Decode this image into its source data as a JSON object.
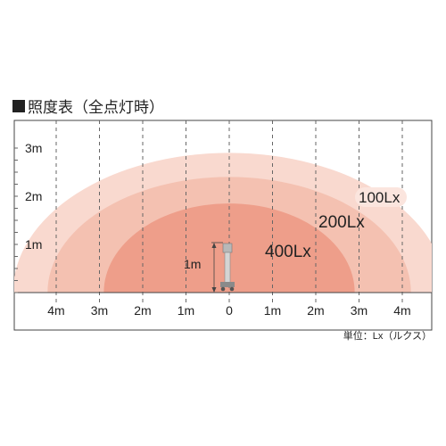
{
  "title": "照度表（全点灯時）",
  "unit_note": "単位：Lx（ルクス）",
  "pole_height_label": "1m",
  "colors": {
    "zone_100": "#f9d9cf",
    "zone_200": "#f4c1b1",
    "zone_400": "#ee9e8a",
    "frame": "#444444",
    "dash": "#666666"
  },
  "x_axis": {
    "ticks": [
      "4m",
      "3m",
      "2m",
      "1m",
      "0",
      "1m",
      "2m",
      "3m",
      "4m"
    ]
  },
  "y_axis": {
    "ticks": [
      "1m",
      "2m",
      "3m"
    ]
  },
  "zones": [
    {
      "label": "100Lx",
      "radius_x_m": 5.0,
      "height_m": 2.9,
      "color": "#f9d9cf"
    },
    {
      "label": "200Lx",
      "radius_x_m": 4.2,
      "height_m": 2.4,
      "color": "#f4c1b1"
    },
    {
      "label": "400Lx",
      "radius_x_m": 2.9,
      "height_m": 1.85,
      "color": "#ee9e8a"
    }
  ]
}
